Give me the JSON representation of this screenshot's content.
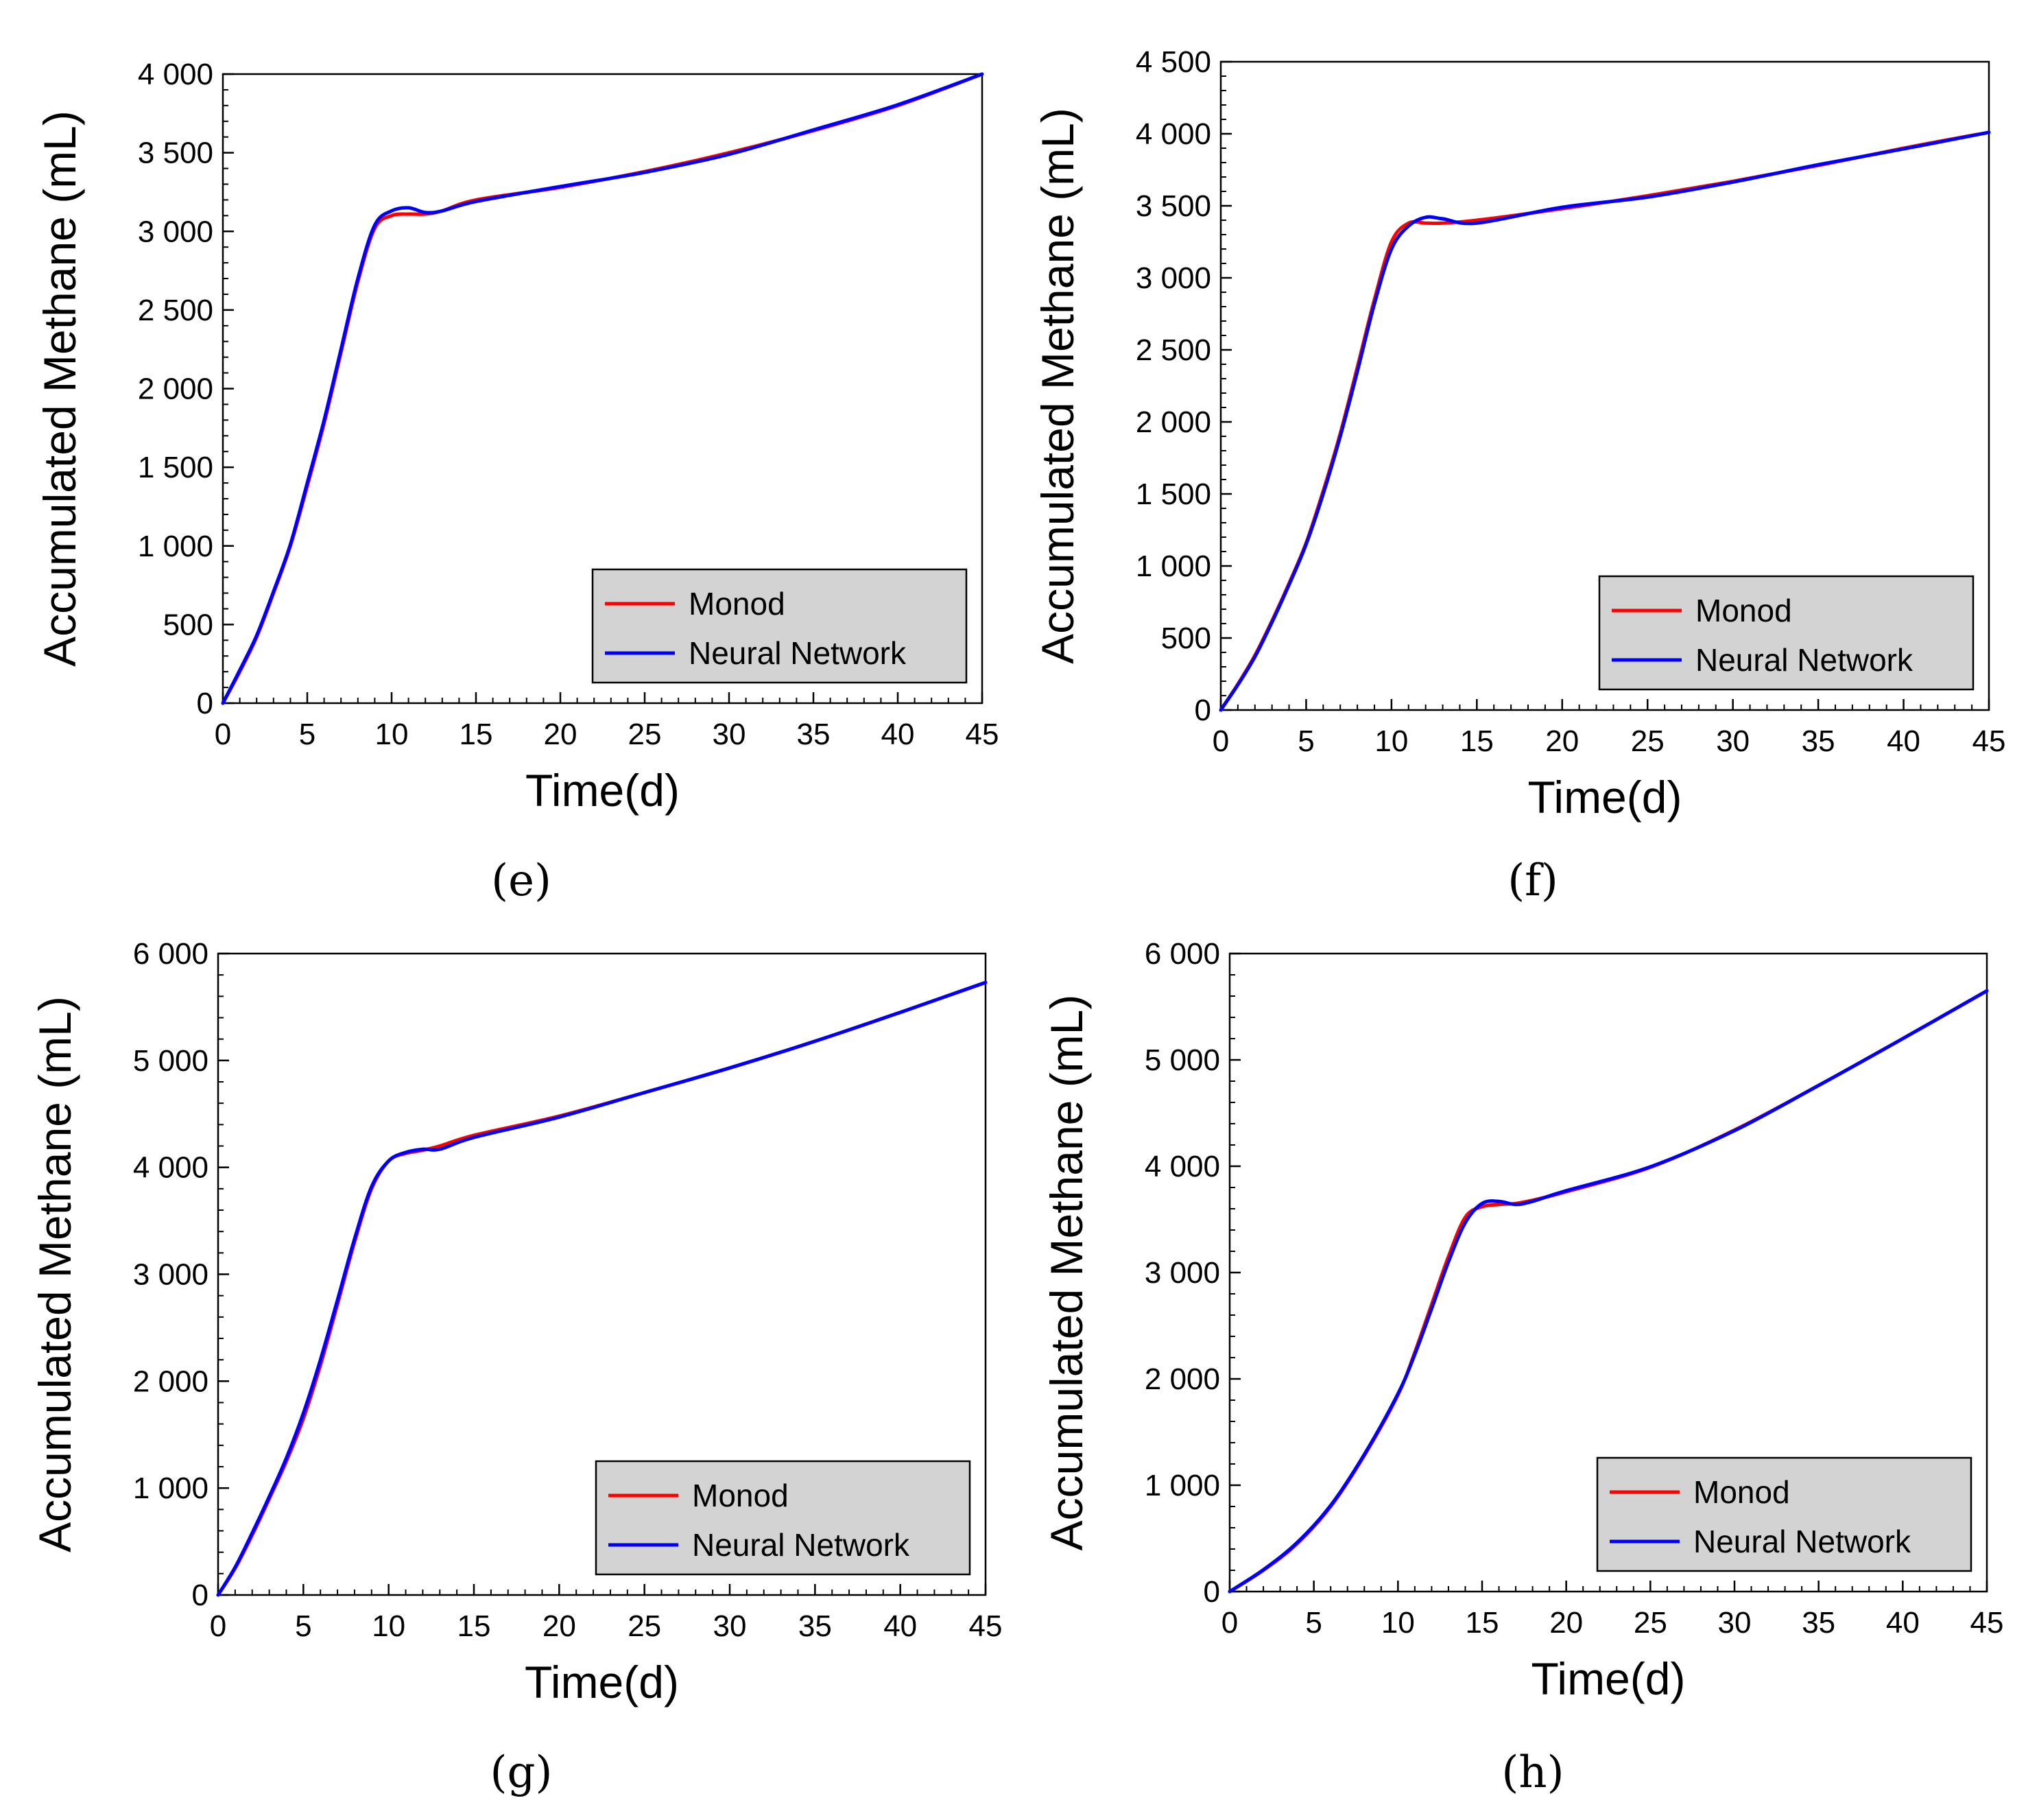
{
  "chart_data": [
    {
      "type": "line",
      "panel_label": "(e)",
      "xlabel": "Time(d)",
      "ylabel": "Accumulated Methane (mL)",
      "xlim": [
        0,
        45
      ],
      "ylim": [
        0,
        4000
      ],
      "x_ticks": [
        0,
        5,
        10,
        15,
        20,
        25,
        30,
        35,
        40,
        45
      ],
      "x_tick_labels": [
        "0",
        "5",
        "10",
        "15",
        "20",
        "25",
        "30",
        "35",
        "40",
        "45"
      ],
      "y_ticks": [
        0,
        500,
        1000,
        1500,
        2000,
        2500,
        3000,
        3500,
        4000
      ],
      "y_tick_labels": [
        "0",
        "500",
        "1 000",
        "1 500",
        "2 000",
        "2 500",
        "3 000",
        "3 500",
        "4 000"
      ],
      "legend": {
        "position": "bottom-right"
      },
      "x": [
        0,
        1,
        2,
        3,
        4,
        5,
        6,
        7,
        8,
        9,
        10,
        11,
        12,
        13,
        15,
        20,
        25,
        30,
        35,
        40,
        45
      ],
      "series": [
        {
          "name": "Monod",
          "color": "#ff0000",
          "values": [
            0,
            200,
            420,
            700,
            1000,
            1380,
            1780,
            2230,
            2680,
            3020,
            3100,
            3110,
            3110,
            3130,
            3200,
            3280,
            3380,
            3500,
            3640,
            3800,
            4000
          ]
        },
        {
          "name": "Neural Network",
          "color": "#0000ff",
          "values": [
            0,
            210,
            430,
            710,
            1010,
            1400,
            1800,
            2250,
            2700,
            3040,
            3130,
            3150,
            3120,
            3130,
            3190,
            3285,
            3375,
            3490,
            3645,
            3805,
            4000
          ]
        }
      ]
    },
    {
      "type": "line",
      "panel_label": "(f)",
      "xlabel": "Time(d)",
      "ylabel": "Accumulated Methane (mL)",
      "xlim": [
        0,
        45
      ],
      "ylim": [
        0,
        4500
      ],
      "x_ticks": [
        0,
        5,
        10,
        15,
        20,
        25,
        30,
        35,
        40,
        45
      ],
      "x_tick_labels": [
        "0",
        "5",
        "10",
        "15",
        "20",
        "25",
        "30",
        "35",
        "40",
        "45"
      ],
      "y_ticks": [
        0,
        500,
        1000,
        1500,
        2000,
        2500,
        3000,
        3500,
        4000,
        4500
      ],
      "y_tick_labels": [
        "0",
        "500",
        "1 000",
        "1 500",
        "2 000",
        "2 500",
        "3 000",
        "3 500",
        "4 000",
        "4 500"
      ],
      "legend": {
        "position": "bottom-right"
      },
      "x": [
        0,
        1,
        2,
        3,
        4,
        5,
        6,
        7,
        8,
        9,
        10,
        11,
        12,
        13,
        15,
        20,
        25,
        30,
        35,
        40,
        45
      ],
      "series": [
        {
          "name": "Monod",
          "color": "#ff0000",
          "values": [
            0,
            180,
            380,
            620,
            880,
            1160,
            1520,
            1920,
            2380,
            2850,
            3250,
            3380,
            3380,
            3380,
            3400,
            3480,
            3570,
            3670,
            3780,
            3900,
            4010
          ]
        },
        {
          "name": "Neural Network",
          "color": "#0000ff",
          "values": [
            0,
            175,
            370,
            610,
            870,
            1150,
            1500,
            1900,
            2350,
            2820,
            3200,
            3360,
            3420,
            3410,
            3380,
            3490,
            3560,
            3665,
            3785,
            3895,
            4010
          ]
        }
      ]
    },
    {
      "type": "line",
      "panel_label": "(g)",
      "xlabel": "Time(d)",
      "ylabel": "Accumulated Methane (mL)",
      "xlim": [
        0,
        45
      ],
      "ylim": [
        0,
        6000
      ],
      "x_ticks": [
        0,
        5,
        10,
        15,
        20,
        25,
        30,
        35,
        40,
        45
      ],
      "x_tick_labels": [
        "0",
        "5",
        "10",
        "15",
        "20",
        "25",
        "30",
        "35",
        "40",
        "45"
      ],
      "y_ticks": [
        0,
        1000,
        2000,
        3000,
        4000,
        5000,
        6000
      ],
      "y_tick_labels": [
        "0",
        "1 000",
        "2 000",
        "3 000",
        "4 000",
        "5 000",
        "6 000"
      ],
      "legend": {
        "position": "bottom-right"
      },
      "x": [
        0,
        1,
        2,
        3,
        4,
        5,
        6,
        7,
        8,
        9,
        10,
        11,
        12,
        13,
        15,
        20,
        25,
        30,
        35,
        40,
        45
      ],
      "series": [
        {
          "name": "Monod",
          "color": "#ff0000",
          "values": [
            0,
            250,
            560,
            900,
            1250,
            1650,
            2150,
            2720,
            3300,
            3800,
            4060,
            4130,
            4160,
            4200,
            4300,
            4480,
            4700,
            4930,
            5180,
            5450,
            5730
          ]
        },
        {
          "name": "Neural Network",
          "color": "#0000ff",
          "values": [
            0,
            260,
            580,
            920,
            1280,
            1700,
            2200,
            2760,
            3330,
            3820,
            4060,
            4140,
            4170,
            4170,
            4280,
            4470,
            4700,
            4930,
            5180,
            5450,
            5730
          ]
        }
      ]
    },
    {
      "type": "line",
      "panel_label": "(h)",
      "xlabel": "Time(d)",
      "ylabel": "Accumulated Methane (mL)",
      "xlim": [
        0,
        45
      ],
      "ylim": [
        0,
        6000
      ],
      "x_ticks": [
        0,
        5,
        10,
        15,
        20,
        25,
        30,
        35,
        40,
        45
      ],
      "x_tick_labels": [
        "0",
        "5",
        "10",
        "15",
        "20",
        "25",
        "30",
        "35",
        "40",
        "45"
      ],
      "y_ticks": [
        0,
        1000,
        2000,
        3000,
        4000,
        5000,
        6000
      ],
      "y_tick_labels": [
        "0",
        "1 000",
        "2 000",
        "3 000",
        "4 000",
        "5 000",
        "6 000"
      ],
      "legend": {
        "position": "bottom-right"
      },
      "x": [
        0,
        2,
        4,
        6,
        8,
        10,
        11,
        12,
        13,
        14,
        15,
        16,
        17,
        18,
        20,
        25,
        30,
        35,
        40,
        45
      ],
      "series": [
        {
          "name": "Monod",
          "color": "#ff0000",
          "values": [
            0,
            200,
            450,
            800,
            1280,
            1850,
            2250,
            2700,
            3150,
            3520,
            3620,
            3640,
            3650,
            3680,
            3760,
            3990,
            4340,
            4760,
            5200,
            5650
          ]
        },
        {
          "name": "Neural Network",
          "color": "#0000ff",
          "values": [
            0,
            205,
            460,
            810,
            1290,
            1860,
            2230,
            2660,
            3100,
            3470,
            3650,
            3670,
            3640,
            3670,
            3770,
            3995,
            4335,
            4760,
            5200,
            5650
          ]
        }
      ]
    }
  ]
}
